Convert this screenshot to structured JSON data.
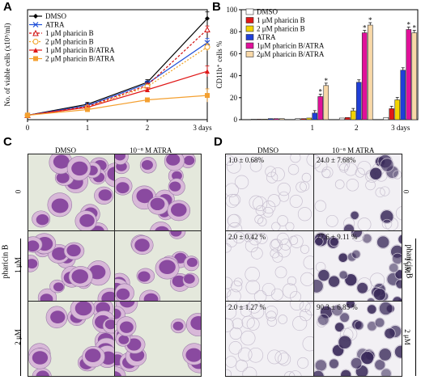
{
  "panels": {
    "a": "A",
    "b": "B",
    "c": "C",
    "d": "D"
  },
  "chart_data": [
    {
      "type": "line",
      "ylabel": "No. of viable cells (x10⁵/ml)",
      "xlabel": "",
      "x": [
        "0",
        "1",
        "2",
        "3 days"
      ],
      "ylim": [
        0,
        25
      ],
      "legend_position": "top-left",
      "series": [
        {
          "name": "DMSO",
          "color": "#000000",
          "values": [
            1,
            3.5,
            8.5,
            23
          ],
          "errors": [
            0.2,
            0.4,
            0.6,
            1.5
          ]
        },
        {
          "name": "ATRA",
          "color": "#1f4fd8",
          "values": [
            1,
            3.2,
            8.2,
            17.5
          ],
          "errors": [
            0.2,
            0.4,
            0.6,
            1.0
          ]
        },
        {
          "name": "1 μM pharicin B",
          "color": "#d01010",
          "values": [
            1,
            3.0,
            7.8,
            20.5
          ],
          "errors": [
            0.2,
            0.3,
            0.5,
            0.8
          ]
        },
        {
          "name": "2 μM pharicin B",
          "color": "#f0a020",
          "values": [
            1,
            2.8,
            7.5,
            16.5
          ],
          "errors": [
            0.2,
            0.3,
            0.5,
            0.8
          ]
        },
        {
          "name": "1 μM pharicin B/ATRA",
          "color": "#e01818",
          "values": [
            1,
            2.8,
            6.8,
            11
          ],
          "errors": [
            0.2,
            0.3,
            0.5,
            1.2
          ]
        },
        {
          "name": "2 μM pharicin B/ATRA",
          "color": "#f4a030",
          "values": [
            1,
            2.3,
            4.5,
            5.5
          ],
          "errors": [
            0.2,
            0.3,
            0.4,
            1.5
          ]
        }
      ]
    },
    {
      "type": "bar",
      "ylabel": "CD11b⁺ cells %",
      "xlabel": "",
      "categories": [
        "",
        "1",
        "2",
        "3 days"
      ],
      "ylim": [
        0,
        100
      ],
      "yticks": [
        "0",
        "20",
        "40",
        "60",
        "80",
        "100"
      ],
      "legend_position": "top-left",
      "significance_marker": "*",
      "series": [
        {
          "name": "DMSO",
          "color": "#ffffff",
          "values": [
            0.5,
            1,
            1.5,
            2
          ]
        },
        {
          "name": "1 μM pharicin B",
          "color": "#e01818",
          "values": [
            0.5,
            1,
            2,
            10
          ]
        },
        {
          "name": "2 μM pharicin B",
          "color": "#f2d400",
          "values": [
            0.5,
            1.5,
            8,
            18
          ]
        },
        {
          "name": "ATRA",
          "color": "#1f3fd8",
          "values": [
            1,
            6,
            34,
            45
          ]
        },
        {
          "name": "1μM pharicin B/ATRA",
          "color": "#e0109a",
          "values": [
            1,
            21,
            79,
            82
          ]
        },
        {
          "name": "2μM pharicin B/ATRA",
          "color": "#f8d8a8",
          "values": [
            1,
            31,
            86,
            79
          ]
        }
      ]
    }
  ],
  "panel_c": {
    "col_labels": [
      "DMSO",
      "10⁻⁸ M ATRA"
    ],
    "row_labels": [
      "0",
      "1 μM",
      "2 μM"
    ],
    "side_label": "pharicin B"
  },
  "panel_d": {
    "col_labels": [
      "DMSO",
      "10⁻⁸ M ATRA"
    ],
    "row_labels": [
      "0",
      "1 μM",
      "2 μM"
    ],
    "side_label": "pharicin B",
    "values": [
      [
        "1.0 ± 0.68%",
        "24.0 ± 7.68%"
      ],
      [
        "2.0 ± 0.42 %",
        "77.6 ± 9.11 %"
      ],
      [
        "2.0 ± 1.27 %",
        "90.3 ± 6.85 %"
      ]
    ]
  }
}
